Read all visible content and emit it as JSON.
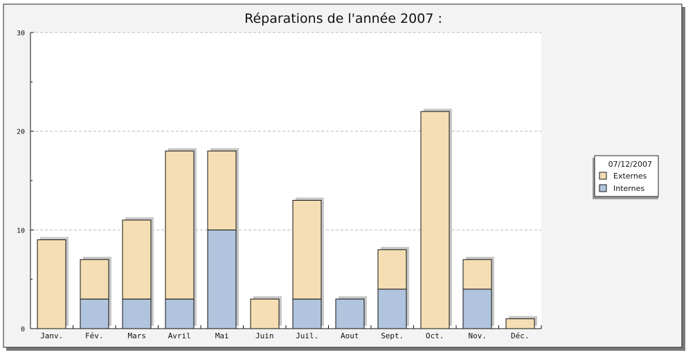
{
  "chart_data": {
    "type": "bar",
    "stacked": true,
    "title": "Réparations de l'année 2007 :",
    "xlabel": "",
    "ylabel": "",
    "categories": [
      "Janv.",
      "Fév.",
      "Mars",
      "Avril",
      "Mai",
      "Juin",
      "Juil.",
      "Aout",
      "Sept.",
      "Oct.",
      "Nov.",
      "Déc."
    ],
    "series": [
      {
        "name": "Internes",
        "values": [
          0,
          3,
          3,
          3,
          10,
          0,
          3,
          3,
          4,
          0,
          4,
          0
        ],
        "color": "#b0c4de"
      },
      {
        "name": "Externes",
        "values": [
          9,
          4,
          8,
          15,
          8,
          3,
          10,
          0,
          4,
          22,
          3,
          1
        ],
        "color": "#f5deb3"
      }
    ],
    "ylim": [
      0,
      30
    ],
    "yticks": [
      0,
      10,
      20,
      30
    ],
    "grid": true,
    "legend": {
      "title": "07/12/2007",
      "placement": "right",
      "order": [
        "Externes",
        "Internes"
      ]
    }
  }
}
